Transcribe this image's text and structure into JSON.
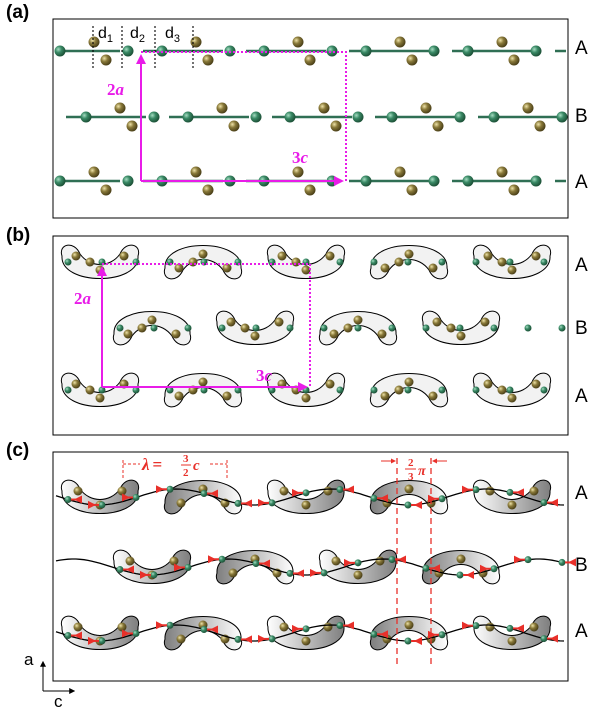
{
  "panels": [
    {
      "label": "(a)",
      "rows": [
        "A",
        "B",
        "A"
      ],
      "spacings": [
        "d",
        "d",
        "d"
      ],
      "spacing_subs": [
        "1",
        "2",
        "3"
      ],
      "vectors": {
        "vertical": "2",
        "vertical_var": "a",
        "horizontal": "3",
        "horizontal_var": "c"
      }
    },
    {
      "label": "(b)",
      "rows": [
        "A",
        "B",
        "A"
      ],
      "vectors": {
        "vertical": "2",
        "vertical_var": "a",
        "horizontal": "3",
        "horizontal_var": "c"
      }
    },
    {
      "label": "(c)",
      "rows": [
        "A",
        "B",
        "A"
      ],
      "wavelength": {
        "lambda": "λ",
        "eq": "=",
        "num": "3",
        "den": "2",
        "var": "c"
      },
      "phase": {
        "num": "2",
        "den": "3",
        "var": "π"
      },
      "axes": {
        "vertical": "a",
        "horizontal": "c"
      }
    }
  ],
  "colors": {
    "magenta": "#e81ce8",
    "red": "#e8302a",
    "green_atom": "#3a8a66",
    "gold_atom": "#8a7a3a",
    "bond": "#2f6f54"
  }
}
